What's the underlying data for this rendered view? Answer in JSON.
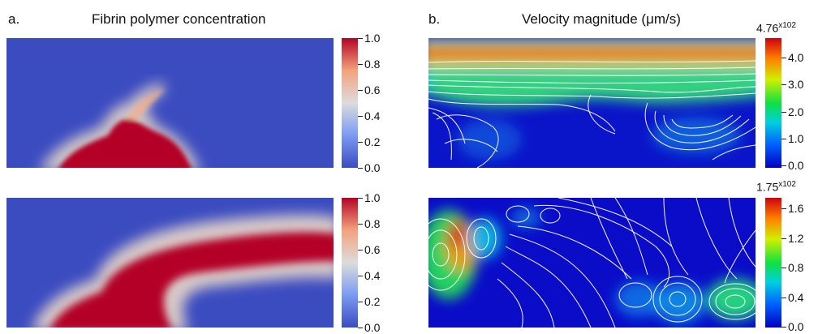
{
  "panel_a": {
    "letter": "a.",
    "title": "Fibrin polymer concentration",
    "colorbar_ticks": [
      "1.0",
      "0.8",
      "0.6",
      "0.4",
      "0.2",
      "0.0"
    ]
  },
  "panel_b": {
    "letter": "b.",
    "title": "Velocity magnitude (μm/s)",
    "top": {
      "max_label": "4.76",
      "max_exp": "x10",
      "max_pow": "2",
      "colorbar_ticks": [
        "4.0",
        "3.0",
        "2.0",
        "1.0",
        "0.0"
      ]
    },
    "bottom": {
      "max_label": "1.75",
      "max_exp": "x10",
      "max_pow": "2",
      "colorbar_ticks": [
        "1.6",
        "1.2",
        "0.8",
        "0.4",
        "0.0"
      ]
    }
  },
  "colors": {
    "concentration_low": "#3b4cc0",
    "concentration_high": "#b40426",
    "velocity_low": "#0a10c8",
    "velocity_high": "#c81d1d"
  }
}
